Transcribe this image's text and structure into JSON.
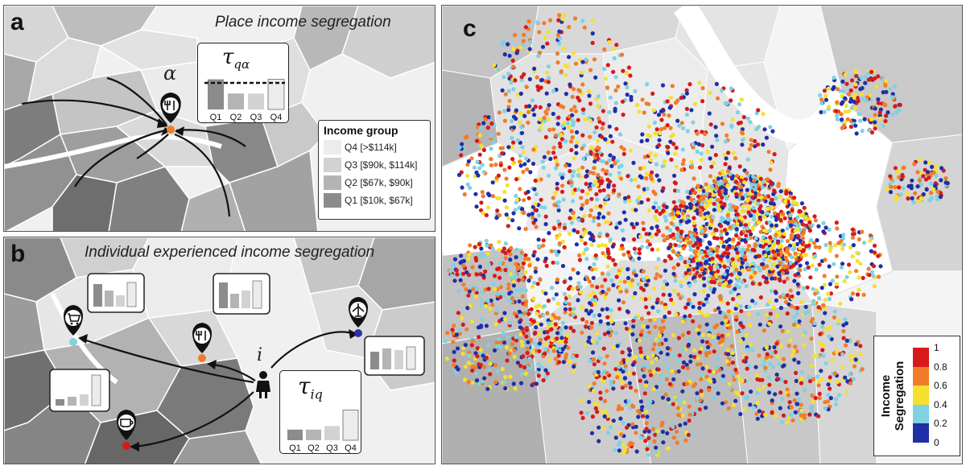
{
  "panel_a": {
    "letter": "a",
    "title": "Place income segregation",
    "symbol_alpha": "α",
    "tau_label": "τ",
    "tau_sub": "qα",
    "bars": {
      "labels": [
        "Q1",
        "Q2",
        "Q3",
        "Q4"
      ],
      "values": [
        0.85,
        0.45,
        0.45,
        0.85
      ]
    },
    "legend": {
      "title": "Income group",
      "items": [
        {
          "label": "Q4 [>$114k]",
          "color": "#ececec"
        },
        {
          "label": "Q3 [$90k, $114k]",
          "color": "#d2d2d2"
        },
        {
          "label": "Q2 [$67k, $90k]",
          "color": "#b4b4b4"
        },
        {
          "label": "Q1 [$10k, $67k]",
          "color": "#8c8c8c"
        }
      ]
    }
  },
  "panel_b": {
    "letter": "b",
    "title": "Individual experienced income segregation",
    "symbol_i": "i",
    "tau_label": "τ",
    "tau_sub": "iq",
    "bars": {
      "labels": [
        "Q1",
        "Q2",
        "Q3",
        "Q4"
      ],
      "values": [
        0.3,
        0.3,
        0.4,
        0.85
      ]
    }
  },
  "panel_c": {
    "letter": "c",
    "colorbar": {
      "title_line1": "Income",
      "title_line2": "Segregation",
      "ticks": [
        "1",
        "0.8",
        "0.6",
        "0.4",
        "0.2",
        "0"
      ],
      "colors": [
        "#d7191c",
        "#f07c2a",
        "#f5e12e",
        "#7fd1e3",
        "#1f2fa8"
      ]
    }
  }
}
